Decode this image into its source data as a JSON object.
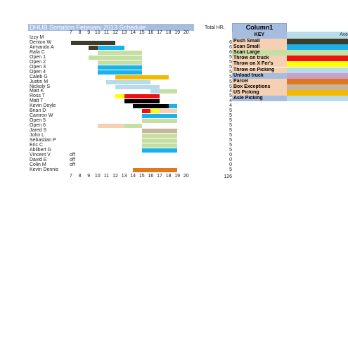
{
  "title": "DHUB Sortation February 2013 Schedule",
  "total_label": "Total HR.",
  "hours": [
    "7",
    "8",
    "9",
    "10",
    "11",
    "12",
    "13",
    "14",
    "15",
    "16",
    "17",
    "18",
    "19",
    "20"
  ],
  "key_column_title": "Column1",
  "key_title": "KEY",
  "avg_header": "Ave",
  "grand_total": "126",
  "off_label": "off",
  "employees": [
    {
      "name": "Izzy M",
      "total": "",
      "off": false
    },
    {
      "name": "Denton W",
      "total": "6",
      "off": false
    },
    {
      "name": "Armando A",
      "total": "6",
      "off": false
    },
    {
      "name": "Rafa C",
      "total": "6",
      "off": false
    },
    {
      "name": "Open 1",
      "total": "5",
      "off": false
    },
    {
      "name": "Open 2",
      "total": "5",
      "off": false
    },
    {
      "name": "Open 3",
      "total": "5",
      "off": false
    },
    {
      "name": "Open 4",
      "total": "5",
      "off": false
    },
    {
      "name": "Caleb G",
      "total": "5",
      "off": false
    },
    {
      "name": "Justin M",
      "total": "5",
      "off": false
    },
    {
      "name": "Nickoly S",
      "total": "5",
      "off": false
    },
    {
      "name": "Matt K",
      "total": "4",
      "off": false
    },
    {
      "name": "Ross T",
      "total": "5",
      "off": false
    },
    {
      "name": "Matt T",
      "total": "4",
      "off": false
    },
    {
      "name": "Kevin Doyle",
      "total": "4",
      "off": false
    },
    {
      "name": "Brian D",
      "total": "5",
      "off": false
    },
    {
      "name": "Camron W",
      "total": "5",
      "off": false
    },
    {
      "name": "Open 5",
      "total": "5",
      "off": false
    },
    {
      "name": "Open 6",
      "total": "5",
      "off": false
    },
    {
      "name": "Jared S",
      "total": "5",
      "off": false
    },
    {
      "name": "John L",
      "total": "5",
      "off": false
    },
    {
      "name": "Sebastian P",
      "total": "5",
      "off": false
    },
    {
      "name": "Eric C",
      "total": "5",
      "off": false
    },
    {
      "name": "Abilbert G",
      "total": "5",
      "off": false
    },
    {
      "name": "Vincent V",
      "total": "0",
      "off": true
    },
    {
      "name": "David E",
      "total": "0",
      "off": true
    },
    {
      "name": "Colin M",
      "total": "0",
      "off": true
    },
    {
      "name": "Kevin Dennis",
      "total": "5",
      "off": false
    }
  ],
  "shifts": [
    {
      "row": 1,
      "start": 7,
      "end": 12,
      "color": "#3d3d2a"
    },
    {
      "row": 2,
      "start": 9,
      "end": 10,
      "color": "#3d3d2a"
    },
    {
      "row": 2,
      "start": 10,
      "end": 13,
      "color": "#1ab2ea"
    },
    {
      "row": 3,
      "start": 10,
      "end": 15,
      "color": "#c5dfa3"
    },
    {
      "row": 4,
      "start": 9,
      "end": 10,
      "color": "#c5dfa3"
    },
    {
      "row": 4,
      "start": 10,
      "end": 15,
      "color": "#c5dfa3"
    },
    {
      "row": 5,
      "start": 10,
      "end": 15,
      "color": "#c5dfa3"
    },
    {
      "row": 6,
      "start": 10,
      "end": 15,
      "color": "#1ab2ea"
    },
    {
      "row": 7,
      "start": 10,
      "end": 15,
      "color": "#1ab2ea"
    },
    {
      "row": 8,
      "start": 12,
      "end": 18,
      "color": "#f5b800"
    },
    {
      "row": 9,
      "start": 11,
      "end": 12,
      "color": "#b7dbe8"
    },
    {
      "row": 9,
      "start": 12,
      "end": 16,
      "color": "#b7dbe8"
    },
    {
      "row": 10,
      "start": 12,
      "end": 16,
      "color": "#b7dbe8"
    },
    {
      "row": 10,
      "start": 16,
      "end": 17,
      "color": "#b7dbe8"
    },
    {
      "row": 11,
      "start": 16,
      "end": 17,
      "color": "#b7dbe8"
    },
    {
      "row": 11,
      "start": 17,
      "end": 19,
      "color": "#c5dfa3"
    },
    {
      "row": 12,
      "start": 12,
      "end": 13,
      "color": "#ffff00"
    },
    {
      "row": 12,
      "start": 13,
      "end": 17,
      "color": "#ee1111"
    },
    {
      "row": 13,
      "start": 13,
      "end": 17,
      "color": "#000000"
    },
    {
      "row": 14,
      "start": 14,
      "end": 17,
      "color": "#000000"
    },
    {
      "row": 14,
      "start": 17,
      "end": 18,
      "color": "#000000"
    },
    {
      "row": 14,
      "start": 18,
      "end": 19,
      "color": "#1ab2ea"
    },
    {
      "row": 15,
      "start": 15,
      "end": 16,
      "color": "#ee1111"
    },
    {
      "row": 15,
      "start": 16,
      "end": 17,
      "color": "#ffff00"
    },
    {
      "row": 15,
      "start": 17,
      "end": 19,
      "color": "#f5d0b3"
    },
    {
      "row": 16,
      "start": 15,
      "end": 19,
      "color": "#1ab2ea"
    },
    {
      "row": 17,
      "start": 15,
      "end": 19,
      "color": "#c5dfa3"
    },
    {
      "row": 18,
      "start": 10,
      "end": 13,
      "color": "#f5d0b3"
    },
    {
      "row": 18,
      "start": 13,
      "end": 15,
      "color": "#c5dfa3"
    },
    {
      "row": 19,
      "start": 15,
      "end": 19,
      "color": "#c8b49a"
    },
    {
      "row": 20,
      "start": 15,
      "end": 19,
      "color": "#c5dfa3"
    },
    {
      "row": 21,
      "start": 15,
      "end": 19,
      "color": "#c5dfa3"
    },
    {
      "row": 22,
      "start": 15,
      "end": 19,
      "color": "#c5dfa3"
    },
    {
      "row": 23,
      "start": 15,
      "end": 19,
      "color": "#1ab2ea"
    },
    {
      "row": 27,
      "start": 14,
      "end": 19,
      "color": "#e07820"
    }
  ],
  "key": [
    {
      "label": "Push Small",
      "label_bg": "#f5d0b3",
      "color": "#3d3d2a"
    },
    {
      "label": "Scan Small",
      "label_bg": "#f5d0b3",
      "color": "#1ab2ea"
    },
    {
      "label": "Scan Large",
      "label_bg": "#c5dfa3",
      "color": "#c5dfa3"
    },
    {
      "label": "Throw on truck",
      "label_bg": "#f5d0b3",
      "color": "#ee1111"
    },
    {
      "label": "Throw on X Fer's",
      "label_bg": "#f5d0b3",
      "color": "#ffff00"
    },
    {
      "label": "Throw on Picking",
      "label_bg": "#f5d0b3",
      "color": "#b7dbe8"
    },
    {
      "label": "Unload truck",
      "label_bg": "#a6bde0",
      "color": "#c8a0c8"
    },
    {
      "label": "Parcel",
      "label_bg": "#f5d0b3",
      "color": "#e07820"
    },
    {
      "label": "Box Exceptions",
      "label_bg": "#f5d0b3",
      "color": "#c8b49a"
    },
    {
      "label": "US Picking",
      "label_bg": "#f5d0b3",
      "color": "#f5b800"
    },
    {
      "label": "Asle Picking",
      "label_bg": "#a6bde0",
      "color": "#b7dbe8"
    }
  ]
}
